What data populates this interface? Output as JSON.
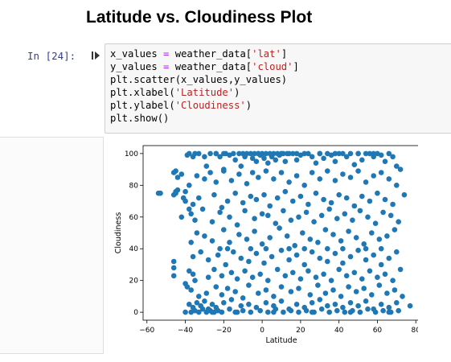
{
  "heading": "Latitude vs. Cloudiness Plot",
  "cell": {
    "prompt": "In [24]:",
    "code": [
      [
        {
          "t": "x_values "
        },
        {
          "t": "=",
          "c": "op"
        },
        {
          "t": " weather_data["
        },
        {
          "t": "'lat'",
          "c": "str"
        },
        {
          "t": "]"
        }
      ],
      [
        {
          "t": "y_values "
        },
        {
          "t": "=",
          "c": "op"
        },
        {
          "t": " weather_data["
        },
        {
          "t": "'cloud'",
          "c": "str"
        },
        {
          "t": "]"
        }
      ],
      [
        {
          "t": "plt.scatter(x_values,y_values)"
        }
      ],
      [
        {
          "t": "plt.xlabel("
        },
        {
          "t": "'Latitude'",
          "c": "str"
        },
        {
          "t": ")"
        }
      ],
      [
        {
          "t": "plt.ylabel("
        },
        {
          "t": "'Cloudiness'",
          "c": "str"
        },
        {
          "t": ")"
        }
      ],
      [
        {
          "t": "plt.show()"
        }
      ]
    ]
  },
  "icons": {
    "collapse": "collapse-cell-icon"
  },
  "chart_data": {
    "type": "scatter",
    "xlabel": "Latitude",
    "ylabel": "Cloudiness",
    "xlim": [
      -62,
      82
    ],
    "ylim": [
      -5,
      105
    ],
    "xticks": [
      -60,
      -40,
      -20,
      0,
      20,
      40,
      60,
      80
    ],
    "yticks": [
      0,
      20,
      40,
      60,
      80,
      100
    ],
    "marker_color": "#1f77b4",
    "grid": false,
    "x": [
      -54,
      -53,
      -46,
      -45,
      -44,
      -41,
      -40,
      -39,
      -38,
      -36,
      -35,
      -33,
      -30,
      -29,
      -27,
      -24,
      -22,
      -20,
      -19,
      -17,
      -15,
      -14,
      -12,
      -11,
      -9,
      -8,
      -6,
      -5,
      -4,
      -3,
      -2,
      -1,
      0,
      1,
      2,
      3,
      4,
      5,
      6,
      7,
      8,
      9,
      10,
      11,
      12,
      13,
      14,
      16,
      18,
      20,
      22,
      24,
      26,
      28,
      30,
      32,
      34,
      36,
      38,
      40,
      42,
      44,
      46,
      48,
      50,
      52,
      54,
      56,
      58,
      60,
      62,
      64,
      66,
      68,
      70,
      72,
      -46,
      -44,
      -42,
      -38,
      -34,
      -30,
      -27,
      -24,
      -20,
      -16,
      -12,
      -8,
      -5,
      -2,
      2,
      6,
      10,
      14,
      18,
      22,
      26,
      30,
      34,
      38,
      42,
      46,
      50,
      54,
      58,
      62,
      66,
      70,
      -45,
      -40,
      -36,
      -33,
      -25,
      -21,
      -18,
      -14,
      -10,
      -6,
      -3,
      1,
      4,
      8,
      12,
      16,
      20,
      24,
      28,
      32,
      36,
      40,
      44,
      48,
      52,
      56,
      60,
      64,
      68,
      74,
      -45,
      -42,
      -37,
      -35,
      -31,
      -26,
      -22,
      -17,
      -13,
      -9,
      -4,
      0,
      3,
      7,
      11,
      15,
      19,
      23,
      27,
      31,
      35,
      39,
      43,
      47,
      51,
      55,
      59,
      63,
      67,
      71,
      -38,
      -34,
      -30,
      -26,
      -20,
      -17,
      -12,
      -8,
      -4,
      0,
      4,
      9,
      13,
      17,
      21,
      25,
      29,
      33,
      37,
      41,
      45,
      49,
      53,
      57,
      61,
      65,
      69,
      -37,
      -36,
      -32,
      -28,
      -23,
      -19,
      -15,
      -11,
      -7,
      -3,
      1,
      5,
      10,
      14,
      18,
      22,
      26,
      30,
      34,
      38,
      42,
      46,
      50,
      54,
      58,
      62,
      66,
      70,
      -46,
      -46,
      -38,
      -36,
      -35,
      -28,
      -25,
      -21,
      -16,
      -13,
      -9,
      -5,
      -1,
      3,
      8,
      12,
      16,
      20,
      24,
      28,
      32,
      36,
      40,
      44,
      48,
      52,
      56,
      60,
      64,
      68,
      72,
      -46,
      -40,
      -37,
      -33,
      -29,
      -24,
      -21,
      -18,
      -14,
      -10,
      -7,
      -2,
      2,
      6,
      10,
      15,
      19,
      25,
      29,
      33,
      37,
      41,
      45,
      49,
      53,
      57,
      61,
      65,
      69,
      73,
      -39,
      -37,
      -35,
      -33,
      -31,
      -29,
      -27,
      -25,
      -23,
      -21,
      -17,
      -13,
      -10,
      -6,
      -1,
      3,
      7,
      11,
      15,
      19,
      23,
      27,
      31,
      35,
      39,
      43,
      47,
      51,
      55,
      59,
      63,
      67,
      71,
      -40,
      -38,
      -36,
      -34,
      -32,
      -30,
      -28,
      -26,
      -24,
      -20,
      -16,
      -11,
      -7,
      -3,
      2,
      6,
      10,
      14,
      18,
      22,
      26,
      30,
      34,
      38,
      42,
      46,
      50,
      54,
      58,
      62,
      66,
      70,
      77,
      -26,
      -24,
      -22,
      -20,
      -18,
      -14,
      -10,
      -6,
      -2,
      2,
      6,
      10,
      14,
      18,
      22,
      26,
      30,
      34,
      38,
      42,
      46,
      50,
      54,
      58,
      62,
      66
    ],
    "y": [
      75,
      75,
      74,
      75,
      77,
      72,
      76,
      99,
      100,
      98,
      100,
      100,
      98,
      92,
      100,
      100,
      98,
      90,
      100,
      99,
      100,
      96,
      100,
      92,
      98,
      100,
      100,
      97,
      100,
      95,
      100,
      99,
      100,
      97,
      100,
      94,
      100,
      98,
      100,
      96,
      100,
      99,
      100,
      100,
      95,
      100,
      100,
      100,
      96,
      99,
      100,
      100,
      98,
      94,
      100,
      97,
      100,
      99,
      95,
      100,
      100,
      98,
      100,
      93,
      100,
      96,
      100,
      100,
      98,
      100,
      99,
      95,
      100,
      98,
      92,
      90,
      88,
      85,
      87,
      80,
      86,
      84,
      88,
      82,
      89,
      83,
      87,
      81,
      88,
      85,
      89,
      84,
      88,
      82,
      86,
      80,
      88,
      84,
      89,
      83,
      87,
      85,
      89,
      82,
      86,
      88,
      84,
      80,
      89,
      70,
      68,
      72,
      74,
      66,
      70,
      75,
      69,
      73,
      71,
      74,
      67,
      72,
      76,
      70,
      73,
      68,
      75,
      71,
      69,
      74,
      72,
      67,
      73,
      70,
      75,
      71,
      68,
      74,
      76,
      60,
      62,
      58,
      65,
      57,
      63,
      60,
      55,
      64,
      59,
      62,
      61,
      56,
      64,
      58,
      60,
      63,
      57,
      61,
      65,
      59,
      62,
      58,
      64,
      60,
      56,
      63,
      61,
      57,
      65,
      50,
      48,
      45,
      52,
      44,
      49,
      46,
      51,
      43,
      47,
      53,
      48,
      42,
      50,
      46,
      44,
      52,
      49,
      45,
      51,
      47,
      43,
      50,
      46,
      48,
      52,
      44,
      35,
      38,
      33,
      36,
      30,
      38,
      34,
      32,
      37,
      31,
      35,
      39,
      33,
      36,
      30,
      38,
      34,
      32,
      37,
      31,
      35,
      39,
      33,
      36,
      30,
      34,
      38,
      32,
      28,
      26,
      24,
      20,
      22,
      27,
      23,
      25,
      21,
      26,
      22,
      24,
      20,
      27,
      23,
      25,
      21,
      26,
      22,
      24,
      20,
      27,
      23,
      25,
      21,
      26,
      22,
      24,
      20,
      27,
      23,
      18,
      14,
      10,
      12,
      16,
      11,
      15,
      13,
      9,
      17,
      12,
      14,
      10,
      16,
      13,
      15,
      11,
      17,
      12,
      14,
      10,
      16,
      13,
      15,
      11,
      17,
      12,
      14,
      10,
      16,
      0,
      1,
      0,
      2,
      0,
      1,
      0,
      1,
      0,
      2,
      0,
      1,
      0,
      1,
      0,
      2,
      0,
      1,
      0,
      1,
      0,
      2,
      0,
      1,
      0,
      1,
      0,
      2,
      0,
      1,
      0,
      1,
      0,
      5,
      3,
      6,
      4,
      7,
      2,
      5,
      3,
      6,
      8,
      4,
      5,
      3,
      6,
      4,
      7,
      2,
      5,
      3,
      6,
      8,
      4,
      5,
      3,
      6,
      4,
      7,
      2,
      5,
      3,
      6,
      4,
      0,
      100,
      40,
      100,
      40,
      0,
      100,
      40,
      100,
      40,
      0,
      100,
      40,
      100,
      40,
      0,
      100,
      40,
      100,
      40,
      0,
      100,
      40,
      100,
      40,
      0
    ]
  }
}
